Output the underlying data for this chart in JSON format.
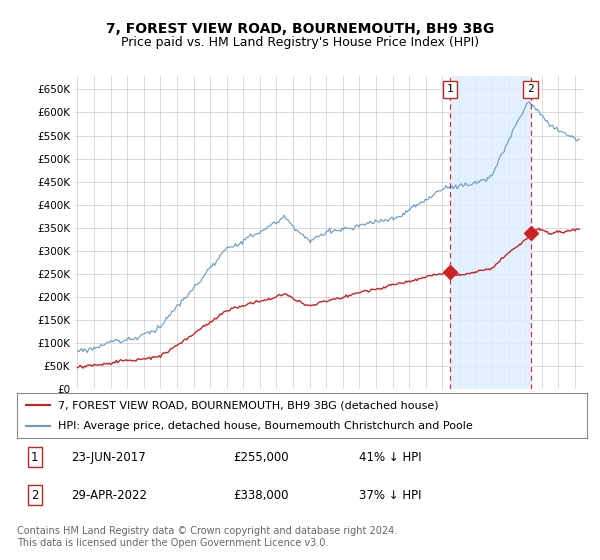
{
  "title": "7, FOREST VIEW ROAD, BOURNEMOUTH, BH9 3BG",
  "subtitle": "Price paid vs. HM Land Registry's House Price Index (HPI)",
  "ylim": [
    0,
    680000
  ],
  "yticks": [
    0,
    50000,
    100000,
    150000,
    200000,
    250000,
    300000,
    350000,
    400000,
    450000,
    500000,
    550000,
    600000,
    650000
  ],
  "background_color": "#ffffff",
  "grid_color": "#cccccc",
  "hpi_color": "#6699cc",
  "price_color": "#cc2222",
  "shade_color": "#ddeeff",
  "sale1_date": 2017.478,
  "sale1_price": 255000,
  "sale2_date": 2022.327,
  "sale2_price": 338000,
  "legend_line1": "7, FOREST VIEW ROAD, BOURNEMOUTH, BH9 3BG (detached house)",
  "legend_line2": "HPI: Average price, detached house, Bournemouth Christchurch and Poole",
  "footer": "Contains HM Land Registry data © Crown copyright and database right 2024.\nThis data is licensed under the Open Government Licence v3.0.",
  "title_fontsize": 10,
  "subtitle_fontsize": 9,
  "tick_fontsize": 7.5,
  "legend_fontsize": 8,
  "footer_fontsize": 7,
  "ann_fontsize": 8.5
}
